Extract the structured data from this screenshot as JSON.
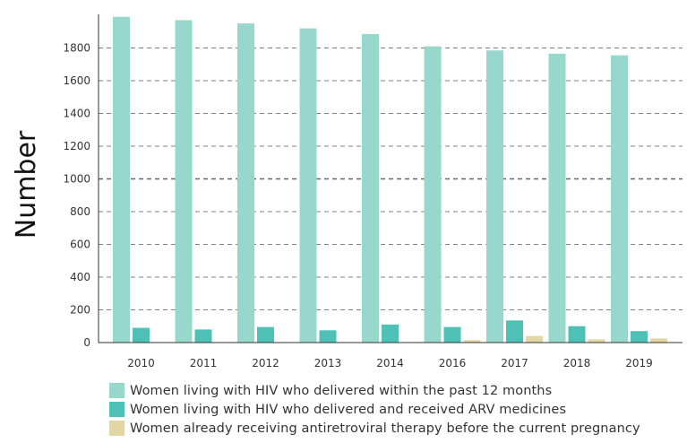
{
  "chart_data": {
    "type": "bar",
    "title": "",
    "xlabel": "",
    "ylabel": "Number",
    "ylim": [
      0,
      2000
    ],
    "yticks": [
      0,
      200,
      400,
      600,
      800,
      1000,
      1200,
      1400,
      1600,
      1800
    ],
    "grid": "horizontal dashed",
    "legend_placement": "bottom",
    "categories": [
      "2010",
      "2011",
      "2012",
      "2013",
      "2014",
      "2016",
      "2017",
      "2018",
      "2019"
    ],
    "series": [
      {
        "name": "Women living with HIV who delivered within the past 12 months",
        "color": "#98d8cc",
        "values": [
          1990,
          1970,
          1950,
          1920,
          1885,
          1810,
          1785,
          1765,
          1755
        ]
      },
      {
        "name": "Women living with HIV who delivered and received ARV medicines",
        "color": "#4fc0b6",
        "values": [
          90,
          80,
          95,
          75,
          110,
          95,
          135,
          100,
          70
        ]
      },
      {
        "name": "Women already receiving antiretroviral therapy before the current pregnancy",
        "color": "#e1d6a4",
        "values": [
          0,
          0,
          0,
          0,
          0,
          15,
          40,
          20,
          25
        ]
      }
    ]
  }
}
